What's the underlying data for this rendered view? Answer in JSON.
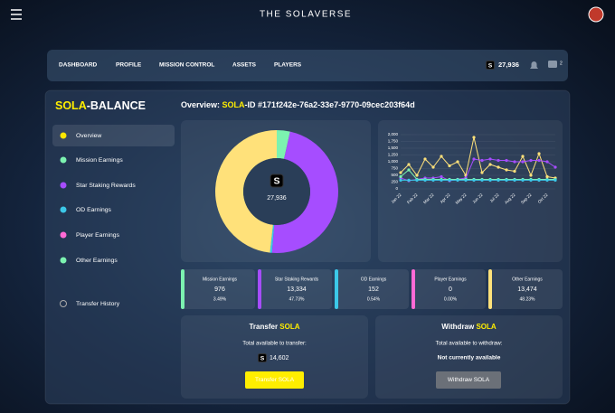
{
  "header": {
    "title": "THE SOLAVERSE"
  },
  "nav": {
    "items": [
      "DASHBOARD",
      "PROFILE",
      "MISSION CONTROL",
      "ASSETS",
      "PLAYERS"
    ],
    "balance": "27,936",
    "notifications": "2"
  },
  "currency_symbol": "S",
  "sidebar": {
    "title": {
      "highlight": "SOLA",
      "rest": "-BALANCE"
    },
    "items": [
      "Overview",
      "Mission Earnings",
      "Star Staking Rewards",
      "OD Earnings",
      "Player Earnings",
      "Other Earnings"
    ],
    "footer": "Transfer History"
  },
  "overview": {
    "label": "Overview: ",
    "highlight": "SOLA",
    "id": "-ID #171f242e-76a2-33e7-9770-09cec203f64d"
  },
  "cards": [
    {
      "name": "Mission Earnings",
      "amount": "976",
      "percent": "3.49%"
    },
    {
      "name": "Star Staking Rewards",
      "amount": "13,334",
      "percent": "47.73%"
    },
    {
      "name": "OD Earnings",
      "amount": "152",
      "percent": "0.54%"
    },
    {
      "name": "Player Earnings",
      "amount": "0",
      "percent": "0.00%"
    },
    {
      "name": "Other Earnings",
      "amount": "13,474",
      "percent": "48.23%"
    }
  ],
  "transfer": {
    "title": "Transfer ",
    "highlight": "SOLA",
    "label": "Total available to transfer:",
    "amount": "14,602",
    "button": "Transfer SOLA"
  },
  "withdraw": {
    "title": "Withdraw ",
    "highlight": "SOLA",
    "label": "Total available to withdraw:",
    "status": "Not currently available",
    "button": "Withdraw SOLA"
  },
  "chart_data": [
    {
      "type": "pie",
      "center_label": "27,936",
      "values": [
        3.49,
        47.73,
        0.54,
        0,
        48.23
      ],
      "colors": [
        "#7cf2b0",
        "#a64dff",
        "#3cc8e8",
        "#ff6ad5",
        "#ffe17a"
      ]
    },
    {
      "type": "line",
      "categories": [
        "Jan 22",
        null,
        "Feb 22",
        null,
        "Mar 22",
        null,
        "Apr 22",
        null,
        "May 22",
        null,
        "Jun 22",
        null,
        "Jul 22",
        null,
        "Aug 22",
        null,
        "Sep 22",
        null,
        "Oct 22",
        null
      ],
      "series": [
        {
          "color": "#ffe17a",
          "values": [
            600,
            900,
            500,
            1100,
            800,
            1200,
            850,
            1000,
            500,
            1900,
            600,
            900,
            800,
            700,
            650,
            1200,
            500,
            1300,
            450,
            400
          ]
        },
        {
          "color": "#a64dff",
          "values": [
            400,
            300,
            350,
            400,
            400,
            450,
            300,
            350,
            400,
            1100,
            1050,
            1100,
            1050,
            1050,
            1000,
            1000,
            1050,
            1050,
            1000,
            800
          ]
        },
        {
          "color": "#7cf2b0",
          "values": [
            450,
            700,
            350,
            350,
            350,
            350,
            350,
            350,
            350,
            350,
            350,
            350,
            350,
            350,
            350,
            350,
            350,
            350,
            350,
            350
          ]
        },
        {
          "color": "#3cc8e8",
          "values": [
            320,
            320,
            320,
            320,
            320,
            320,
            320,
            320,
            320,
            320,
            320,
            320,
            320,
            320,
            320,
            320,
            320,
            320,
            320,
            320
          ]
        }
      ],
      "ylim": [
        0,
        2000
      ],
      "yticks": [
        0,
        250,
        500,
        750,
        {
          "value": 1000,
          "label": "1,000"
        },
        {
          "value": 1250,
          "label": "1,250"
        },
        {
          "value": 1500,
          "label": "1,500"
        },
        {
          "value": 1750,
          "label": "1,750"
        },
        {
          "value": 2000,
          "label": "2,000"
        }
      ],
      "grid": true
    }
  ]
}
